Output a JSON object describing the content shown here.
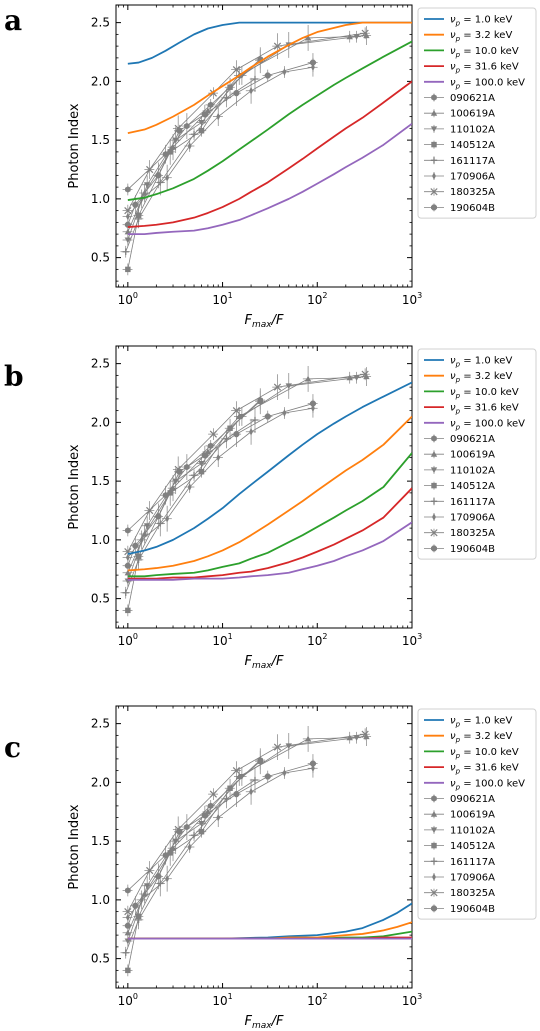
{
  "chart_data": [
    {
      "type": "line",
      "panel_label": "a",
      "xlabel": "F_max/F",
      "ylabel": "Photon Index",
      "xscale": "log",
      "xlim": [
        0.75,
        1000
      ],
      "ylim": [
        0.25,
        2.65
      ],
      "xticks": [
        "10^0",
        "10^1",
        "10^2",
        "10^3"
      ],
      "yticks": [
        "0.5",
        "1.0",
        "1.5",
        "2.0",
        "2.5"
      ],
      "legend_position": "outside-right",
      "series": [
        {
          "name": "ν_p = 1.0 keV",
          "color": "#1f77b4",
          "x": [
            1,
            1.3,
            1.8,
            2.5,
            3.5,
            5,
            7,
            10,
            15,
            20,
            30,
            50,
            100,
            300,
            1000
          ],
          "y": [
            2.15,
            2.16,
            2.2,
            2.26,
            2.33,
            2.4,
            2.45,
            2.48,
            2.5,
            2.5,
            2.5,
            2.5,
            2.5,
            2.5,
            2.5
          ]
        },
        {
          "name": "ν_p = 3.2 keV",
          "color": "#ff7f0e",
          "x": [
            1,
            1.5,
            2,
            3,
            5,
            7,
            10,
            15,
            20,
            30,
            50,
            70,
            100,
            200,
            300,
            1000
          ],
          "y": [
            1.56,
            1.59,
            1.63,
            1.7,
            1.8,
            1.88,
            1.96,
            2.05,
            2.12,
            2.21,
            2.31,
            2.37,
            2.42,
            2.48,
            2.5,
            2.5
          ]
        },
        {
          "name": "ν_p = 10.0 keV",
          "color": "#2ca02c",
          "x": [
            1,
            1.5,
            2,
            3,
            5,
            7,
            10,
            15,
            20,
            30,
            50,
            70,
            100,
            150,
            200,
            300,
            500,
            1000
          ],
          "y": [
            0.99,
            1.01,
            1.04,
            1.09,
            1.17,
            1.24,
            1.32,
            1.42,
            1.49,
            1.59,
            1.72,
            1.8,
            1.88,
            1.97,
            2.03,
            2.11,
            2.21,
            2.34
          ]
        },
        {
          "name": "ν_p = 31.6 keV",
          "color": "#d62728",
          "x": [
            1,
            1.5,
            2,
            3,
            5,
            7,
            10,
            15,
            20,
            30,
            50,
            70,
            100,
            150,
            200,
            300,
            500,
            1000
          ],
          "y": [
            0.76,
            0.77,
            0.78,
            0.8,
            0.84,
            0.88,
            0.93,
            1.0,
            1.06,
            1.14,
            1.26,
            1.34,
            1.43,
            1.53,
            1.6,
            1.69,
            1.82,
            2.0
          ]
        },
        {
          "name": "ν_p = 100.0 keV",
          "color": "#9467bd",
          "x": [
            1,
            1.5,
            2,
            3,
            5,
            7,
            10,
            15,
            20,
            30,
            50,
            70,
            100,
            150,
            200,
            300,
            500,
            1000
          ],
          "y": [
            0.7,
            0.7,
            0.71,
            0.72,
            0.73,
            0.75,
            0.78,
            0.82,
            0.86,
            0.92,
            1.0,
            1.06,
            1.13,
            1.21,
            1.27,
            1.35,
            1.46,
            1.64
          ]
        }
      ]
    },
    {
      "type": "line",
      "panel_label": "b",
      "xlabel": "F_max/F",
      "ylabel": "Photon Index",
      "xscale": "log",
      "xlim": [
        0.75,
        1000
      ],
      "ylim": [
        0.25,
        2.65
      ],
      "xticks": [
        "10^0",
        "10^1",
        "10^2",
        "10^3"
      ],
      "yticks": [
        "0.5",
        "1.0",
        "1.5",
        "2.0",
        "2.5"
      ],
      "legend_position": "outside-right",
      "series": [
        {
          "name": "ν_p = 1.0 keV",
          "color": "#1f77b4",
          "x": [
            1,
            1.5,
            2,
            3,
            5,
            7,
            10,
            15,
            20,
            30,
            50,
            70,
            100,
            150,
            200,
            300,
            500,
            1000
          ],
          "y": [
            0.88,
            0.91,
            0.94,
            1.0,
            1.1,
            1.18,
            1.27,
            1.39,
            1.47,
            1.58,
            1.72,
            1.81,
            1.9,
            1.99,
            2.05,
            2.13,
            2.22,
            2.34
          ]
        },
        {
          "name": "ν_p = 3.2 keV",
          "color": "#ff7f0e",
          "x": [
            1,
            1.5,
            2,
            3,
            5,
            7,
            10,
            15,
            20,
            30,
            50,
            70,
            100,
            150,
            200,
            300,
            500,
            1000
          ],
          "y": [
            0.74,
            0.75,
            0.76,
            0.78,
            0.82,
            0.86,
            0.91,
            0.98,
            1.04,
            1.13,
            1.25,
            1.33,
            1.42,
            1.52,
            1.59,
            1.68,
            1.81,
            2.05
          ]
        },
        {
          "name": "ν_p = 10.0 keV",
          "color": "#2ca02c",
          "x": [
            1,
            1.5,
            2,
            3,
            5,
            7,
            10,
            15,
            20,
            30,
            50,
            70,
            100,
            150,
            200,
            300,
            500,
            1000
          ],
          "y": [
            0.69,
            0.69,
            0.7,
            0.71,
            0.72,
            0.74,
            0.77,
            0.8,
            0.84,
            0.89,
            0.98,
            1.04,
            1.11,
            1.19,
            1.25,
            1.33,
            1.45,
            1.74
          ]
        },
        {
          "name": "ν_p = 31.6 keV",
          "color": "#d62728",
          "x": [
            1,
            1.5,
            2,
            3,
            5,
            7,
            10,
            15,
            20,
            30,
            50,
            70,
            100,
            150,
            200,
            300,
            500,
            1000
          ],
          "y": [
            0.67,
            0.67,
            0.67,
            0.68,
            0.68,
            0.69,
            0.7,
            0.72,
            0.73,
            0.76,
            0.81,
            0.85,
            0.9,
            0.96,
            1.01,
            1.08,
            1.19,
            1.44
          ]
        },
        {
          "name": "ν_p = 100.0 keV",
          "color": "#9467bd",
          "x": [
            1,
            1.5,
            2,
            3,
            5,
            7,
            10,
            15,
            20,
            30,
            50,
            70,
            100,
            150,
            200,
            300,
            500,
            1000
          ],
          "y": [
            0.66,
            0.66,
            0.66,
            0.66,
            0.67,
            0.67,
            0.67,
            0.68,
            0.69,
            0.7,
            0.72,
            0.75,
            0.78,
            0.82,
            0.86,
            0.91,
            0.99,
            1.15
          ]
        }
      ]
    },
    {
      "type": "line",
      "panel_label": "c",
      "xlabel": "F_max/F",
      "ylabel": "Photon Index",
      "xscale": "log",
      "xlim": [
        0.75,
        1000
      ],
      "ylim": [
        0.25,
        2.65
      ],
      "xticks": [
        "10^0",
        "10^1",
        "10^2",
        "10^3"
      ],
      "yticks": [
        "0.5",
        "1.0",
        "1.5",
        "2.0",
        "2.5"
      ],
      "legend_position": "outside-right",
      "series": [
        {
          "name": "ν_p = 1.0 keV",
          "color": "#1f77b4",
          "x": [
            1,
            3,
            10,
            30,
            50,
            100,
            200,
            300,
            500,
            700,
            1000
          ],
          "y": [
            0.67,
            0.67,
            0.67,
            0.68,
            0.69,
            0.7,
            0.73,
            0.76,
            0.83,
            0.89,
            0.97
          ]
        },
        {
          "name": "ν_p = 3.2 keV",
          "color": "#ff7f0e",
          "x": [
            1,
            3,
            10,
            30,
            50,
            100,
            200,
            300,
            500,
            700,
            1000
          ],
          "y": [
            0.67,
            0.67,
            0.67,
            0.67,
            0.68,
            0.68,
            0.7,
            0.71,
            0.74,
            0.77,
            0.81
          ]
        },
        {
          "name": "ν_p = 10.0 keV",
          "color": "#2ca02c",
          "x": [
            1,
            3,
            10,
            30,
            50,
            100,
            200,
            300,
            500,
            700,
            1000
          ],
          "y": [
            0.67,
            0.67,
            0.67,
            0.67,
            0.67,
            0.67,
            0.68,
            0.68,
            0.69,
            0.71,
            0.73
          ]
        },
        {
          "name": "ν_p = 31.6 keV",
          "color": "#d62728",
          "x": [
            1,
            3,
            10,
            30,
            50,
            100,
            200,
            300,
            500,
            700,
            1000
          ],
          "y": [
            0.67,
            0.67,
            0.67,
            0.67,
            0.67,
            0.67,
            0.67,
            0.67,
            0.68,
            0.68,
            0.68
          ]
        },
        {
          "name": "ν_p = 100.0 keV",
          "color": "#9467bd",
          "x": [
            1,
            10,
            100,
            1000
          ],
          "y": [
            0.67,
            0.67,
            0.67,
            0.67
          ]
        }
      ]
    }
  ],
  "observations": {
    "color": "#808080",
    "series": [
      {
        "name": "090621A",
        "marker": "hexagon",
        "x": [
          1.0,
          2.5,
          4.2,
          7.5,
          25
        ],
        "y": [
          1.08,
          1.38,
          1.62,
          1.8,
          2.19
        ]
      },
      {
        "name": "100619A",
        "marker": "triangle-up",
        "x": [
          1.0,
          1.5,
          3.0,
          7.0,
          15,
          80,
          220,
          330
        ],
        "y": [
          0.72,
          1.05,
          1.44,
          1.75,
          2.05,
          2.37,
          2.38,
          2.39
        ]
      },
      {
        "name": "110102A",
        "marker": "triangle-down",
        "x": [
          1.0,
          1.6,
          3.2,
          6.0,
          16,
          50,
          260
        ],
        "y": [
          0.65,
          1.12,
          1.5,
          1.65,
          2.05,
          2.31,
          2.38
        ]
      },
      {
        "name": "140512A",
        "marker": "square",
        "x": [
          1.0,
          1.3,
          2.8,
          6.0,
          12,
          25
        ],
        "y": [
          0.4,
          0.86,
          1.4,
          1.58,
          1.95,
          2.18
        ]
      },
      {
        "name": "161117A",
        "marker": "plus",
        "x": [
          0.95,
          1.3,
          2.2,
          5.0,
          11,
          22
        ],
        "y": [
          0.55,
          0.83,
          1.14,
          1.55,
          1.86,
          2.02
        ]
      },
      {
        "name": "170906A",
        "marker": "thin-diamond",
        "x": [
          1.0,
          1.4,
          2.6,
          4.5,
          9,
          20,
          45,
          90
        ],
        "y": [
          0.85,
          1.0,
          1.18,
          1.45,
          1.7,
          1.92,
          2.08,
          2.12
        ]
      },
      {
        "name": "180325A",
        "marker": "x",
        "x": [
          1.0,
          1.7,
          3.4,
          8.0,
          14,
          38,
          320
        ],
        "y": [
          0.9,
          1.25,
          1.6,
          1.9,
          2.1,
          2.3,
          2.41
        ]
      },
      {
        "name": "190604B",
        "marker": "octagon",
        "x": [
          1.0,
          1.2,
          2.1,
          3.5,
          6.5,
          14,
          30,
          90
        ],
        "y": [
          0.78,
          0.95,
          1.2,
          1.58,
          1.72,
          1.9,
          2.05,
          2.16
        ]
      }
    ]
  }
}
